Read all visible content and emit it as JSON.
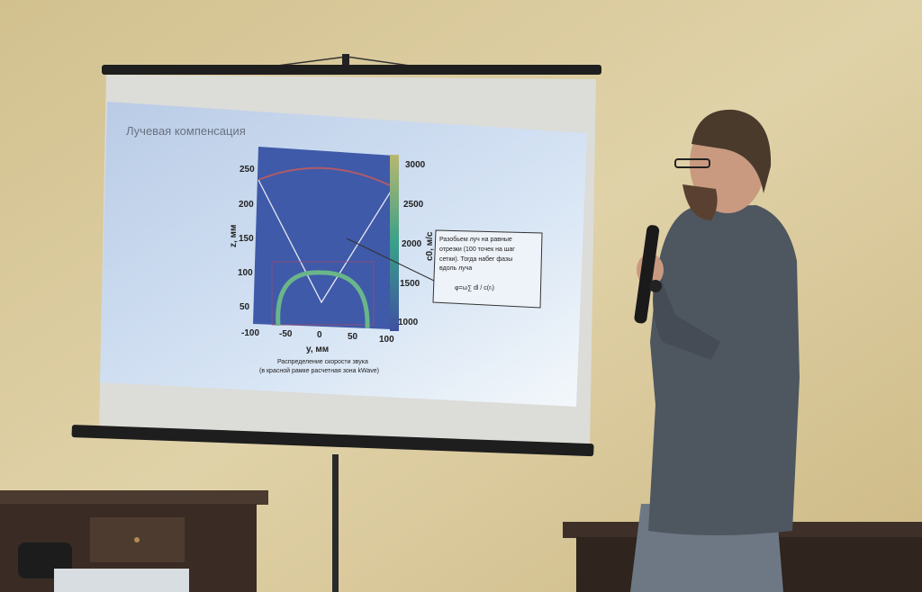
{
  "slide": {
    "title": "Лучевая компенсация",
    "plot": {
      "y_ticks": [
        "250",
        "200",
        "150",
        "100",
        "50"
      ],
      "x_ticks": [
        "-100",
        "-50",
        "0",
        "50",
        "100"
      ],
      "colorbar_ticks": [
        "3000",
        "2500",
        "2000",
        "1500",
        "1000"
      ],
      "ylabel": "z, мм",
      "xlabel": "y, мм",
      "colorbar_label": "c0, м/с"
    },
    "caption_line1": "Распределение скорости звука",
    "caption_line2": "(в красной рамке расчетная зона kWave)",
    "note": {
      "line1": "Разобьем луч на равные",
      "line2": "отрезки (100 точек на шаг",
      "line3": "сетки). Тогда набег фазы",
      "line4": "вдоль луча",
      "formula": "φ=ω∑ dl / c(rᵢ)"
    }
  },
  "colors": {
    "wall": "#d8c79b",
    "slide": "#c9d9ee",
    "heatmap": "#3f5aa8",
    "shirt": "#4e5660"
  }
}
